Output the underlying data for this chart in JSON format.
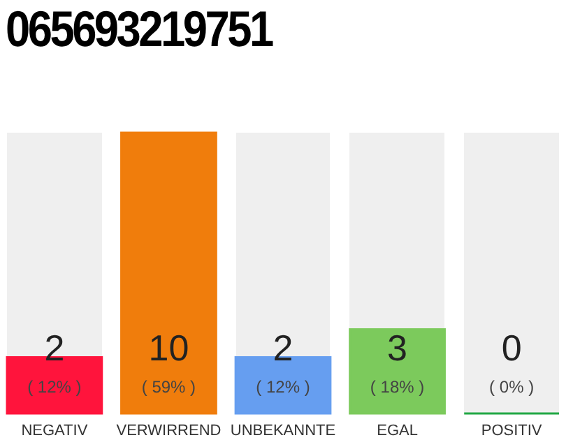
{
  "chart_data": {
    "type": "bar",
    "title": "065693219751",
    "categories": [
      "NEGATIV",
      "VERWIRREND",
      "UNBEKANNTE",
      "EGAL",
      "POSITIV"
    ],
    "values": [
      2,
      10,
      2,
      3,
      0
    ],
    "colors": [
      "#ff143c",
      "#f07d0c",
      "#669ef0",
      "#7cca5c",
      "#22a845"
    ],
    "data_labels": true,
    "annotations": [
      "( 12% )",
      "( 59% )",
      "( 12% )",
      "( 18% )",
      "( 0% )"
    ]
  }
}
